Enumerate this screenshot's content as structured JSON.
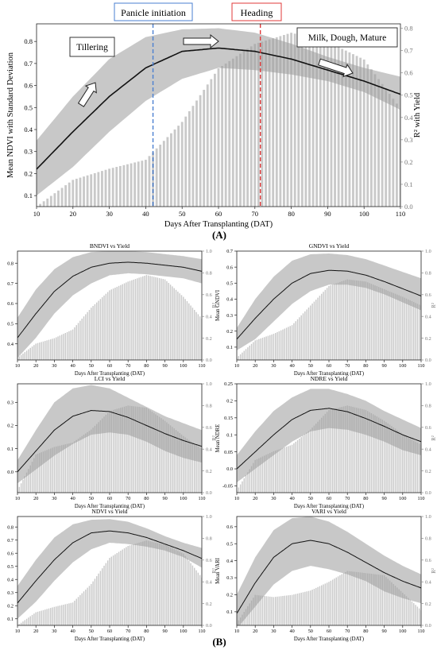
{
  "figure": {
    "panel_a_label": "(A)",
    "panel_b_label": "(B)"
  },
  "chart_data": [
    {
      "id": "A",
      "type": "bar+line",
      "title": "",
      "xlabel": "Days After Transplanting (DAT)",
      "ylabel": "Mean NDVI with Standard Deviation",
      "y2label": "R² with Yield",
      "xlim": [
        10,
        110
      ],
      "ylim": [
        0.05,
        0.88
      ],
      "y2lim": [
        0,
        0.82
      ],
      "xticks": [
        10,
        20,
        30,
        40,
        50,
        60,
        70,
        80,
        90,
        100,
        110
      ],
      "yticks": [
        0.1,
        0.2,
        0.3,
        0.4,
        0.5,
        0.6,
        0.7,
        0.8
      ],
      "y2ticks": [
        0.0,
        0.1,
        0.2,
        0.3,
        0.4,
        0.5,
        0.6,
        0.7,
        0.8
      ],
      "mean_curve": {
        "x": [
          10,
          20,
          30,
          40,
          50,
          60,
          70,
          80,
          90,
          100,
          110
        ],
        "y": [
          0.22,
          0.39,
          0.55,
          0.68,
          0.755,
          0.77,
          0.755,
          0.72,
          0.67,
          0.62,
          0.56
        ]
      },
      "sd_upper": [
        0.35,
        0.55,
        0.72,
        0.82,
        0.855,
        0.86,
        0.84,
        0.79,
        0.73,
        0.68,
        0.64
      ],
      "sd_lower": [
        0.1,
        0.23,
        0.39,
        0.53,
        0.63,
        0.68,
        0.67,
        0.65,
        0.62,
        0.57,
        0.49
      ],
      "r2_bars": {
        "x": [
          10,
          20,
          30,
          40,
          50,
          60,
          70,
          80,
          90,
          100,
          110
        ],
        "y": [
          0.0,
          0.12,
          0.17,
          0.21,
          0.38,
          0.62,
          0.73,
          0.78,
          0.74,
          0.66,
          0.44
        ]
      },
      "vlines": [
        {
          "x": 42,
          "label": "Panicle initiation",
          "color": "#4a7fd1"
        },
        {
          "x": 71.5,
          "label": "Heading",
          "color": "#e03a3a"
        }
      ],
      "annotations": [
        "Tillering",
        "Milk, Dough, Mature"
      ]
    },
    {
      "id": "B1",
      "type": "bar+line",
      "title": "BNDVI vs Yield",
      "xlabel": "Days After Transplanting (DAT)",
      "ylabel": "Mean BNDVI",
      "y2label": "R²",
      "xlim": [
        10,
        110
      ],
      "ylim": [
        0.32,
        0.86
      ],
      "y2lim": [
        0,
        1.0
      ],
      "xticks": [
        10,
        20,
        30,
        40,
        50,
        60,
        70,
        80,
        90,
        100,
        110
      ],
      "yticks": [
        0.4,
        0.5,
        0.6,
        0.7,
        0.8
      ],
      "y2ticks": [
        0.0,
        0.2,
        0.4,
        0.6,
        0.8,
        1.0
      ],
      "mean_curve": {
        "x": [
          10,
          20,
          30,
          40,
          50,
          60,
          70,
          80,
          90,
          100,
          110
        ],
        "y": [
          0.43,
          0.55,
          0.66,
          0.735,
          0.78,
          0.8,
          0.805,
          0.8,
          0.79,
          0.78,
          0.76
        ]
      },
      "sd_upper": [
        0.53,
        0.67,
        0.77,
        0.83,
        0.855,
        0.86,
        0.86,
        0.855,
        0.845,
        0.835,
        0.82
      ],
      "sd_lower": [
        0.33,
        0.43,
        0.55,
        0.64,
        0.7,
        0.74,
        0.75,
        0.745,
        0.735,
        0.725,
        0.7
      ],
      "r2_bars": {
        "x": [
          10,
          20,
          30,
          40,
          50,
          60,
          70,
          80,
          90,
          100,
          110
        ],
        "y": [
          0.02,
          0.15,
          0.2,
          0.28,
          0.48,
          0.64,
          0.72,
          0.78,
          0.74,
          0.58,
          0.38
        ]
      }
    },
    {
      "id": "B2",
      "type": "bar+line",
      "title": "GNDVI vs Yield",
      "xlabel": "Days After Transplanting (DAT)",
      "ylabel": "Mean GNDVI",
      "y2label": "R²",
      "xlim": [
        10,
        110
      ],
      "ylim": [
        0.02,
        0.7
      ],
      "y2lim": [
        0,
        1.0
      ],
      "xticks": [
        10,
        20,
        30,
        40,
        50,
        60,
        70,
        80,
        90,
        100,
        110
      ],
      "yticks": [
        0.1,
        0.2,
        0.3,
        0.4,
        0.5,
        0.6,
        0.7
      ],
      "y2ticks": [
        0.0,
        0.2,
        0.4,
        0.6,
        0.8,
        1.0
      ],
      "mean_curve": {
        "x": [
          10,
          20,
          30,
          40,
          50,
          60,
          70,
          80,
          90,
          100,
          110
        ],
        "y": [
          0.15,
          0.28,
          0.4,
          0.5,
          0.56,
          0.58,
          0.575,
          0.55,
          0.51,
          0.465,
          0.42
        ]
      },
      "sd_upper": [
        0.22,
        0.4,
        0.54,
        0.64,
        0.68,
        0.685,
        0.675,
        0.65,
        0.61,
        0.57,
        0.53
      ],
      "sd_lower": [
        0.08,
        0.15,
        0.26,
        0.37,
        0.45,
        0.49,
        0.49,
        0.47,
        0.43,
        0.38,
        0.33
      ],
      "r2_bars": {
        "x": [
          10,
          20,
          30,
          40,
          50,
          60,
          70,
          80,
          90,
          100,
          110
        ],
        "y": [
          0.02,
          0.18,
          0.24,
          0.32,
          0.5,
          0.68,
          0.74,
          0.72,
          0.65,
          0.58,
          0.5
        ]
      }
    },
    {
      "id": "B3",
      "type": "bar+line",
      "title": "LCI vs Yield",
      "xlabel": "Days After Transplanting (DAT)",
      "ylabel": "Mean LCI",
      "y2label": "R²",
      "xlim": [
        10,
        110
      ],
      "ylim": [
        -0.09,
        0.38
      ],
      "y2lim": [
        0,
        1.0
      ],
      "xticks": [
        10,
        20,
        30,
        40,
        50,
        60,
        70,
        80,
        90,
        100,
        110
      ],
      "yticks": [
        0.0,
        0.1,
        0.2,
        0.3
      ],
      "y2ticks": [
        0.0,
        0.2,
        0.4,
        0.6,
        0.8,
        1.0
      ],
      "mean_curve": {
        "x": [
          10,
          20,
          30,
          40,
          50,
          60,
          70,
          80,
          90,
          100,
          110
        ],
        "y": [
          0.0,
          0.09,
          0.18,
          0.24,
          0.265,
          0.26,
          0.235,
          0.2,
          0.165,
          0.135,
          0.11
        ]
      },
      "sd_upper": [
        0.05,
        0.18,
        0.3,
        0.36,
        0.375,
        0.36,
        0.32,
        0.28,
        0.24,
        0.21,
        0.18
      ],
      "sd_lower": [
        -0.05,
        0.01,
        0.07,
        0.12,
        0.16,
        0.17,
        0.16,
        0.13,
        0.09,
        0.06,
        0.04
      ],
      "r2_bars": {
        "x": [
          10,
          20,
          30,
          40,
          50,
          60,
          70,
          80,
          90,
          100,
          110
        ],
        "y": [
          0.02,
          0.35,
          0.42,
          0.46,
          0.58,
          0.75,
          0.8,
          0.78,
          0.66,
          0.52,
          0.4
        ]
      }
    },
    {
      "id": "B4",
      "type": "bar+line",
      "title": "NDRE vs Yield",
      "xlabel": "Days After Transplanting (DAT)",
      "ylabel": "Mean NDRE",
      "y2label": "R²",
      "xlim": [
        10,
        110
      ],
      "ylim": [
        -0.07,
        0.25
      ],
      "y2lim": [
        0,
        1.0
      ],
      "xticks": [
        10,
        20,
        30,
        40,
        50,
        60,
        70,
        80,
        90,
        100,
        110
      ],
      "yticks": [
        -0.05,
        0.0,
        0.05,
        0.1,
        0.15,
        0.2,
        0.25
      ],
      "y2ticks": [
        0.0,
        0.2,
        0.4,
        0.6,
        0.8,
        1.0
      ],
      "mean_curve": {
        "x": [
          10,
          20,
          30,
          40,
          50,
          60,
          70,
          80,
          90,
          100,
          110
        ],
        "y": [
          0.0,
          0.05,
          0.1,
          0.145,
          0.172,
          0.178,
          0.168,
          0.148,
          0.125,
          0.1,
          0.08
        ]
      },
      "sd_upper": [
        0.04,
        0.11,
        0.17,
        0.21,
        0.235,
        0.235,
        0.22,
        0.2,
        0.17,
        0.145,
        0.12
      ],
      "sd_lower": [
        -0.04,
        0.0,
        0.04,
        0.08,
        0.11,
        0.12,
        0.115,
        0.1,
        0.08,
        0.055,
        0.04
      ],
      "r2_bars": {
        "x": [
          10,
          20,
          30,
          40,
          50,
          60,
          70,
          80,
          90,
          100,
          110
        ],
        "y": [
          0.02,
          0.3,
          0.38,
          0.44,
          0.58,
          0.76,
          0.8,
          0.76,
          0.66,
          0.54,
          0.44
        ]
      }
    },
    {
      "id": "B5",
      "type": "bar+line",
      "title": "NDVI vs Yield",
      "xlabel": "Days After Transplanting (DAT)",
      "ylabel": "Mean NDVI",
      "y2label": "R²",
      "xlim": [
        10,
        110
      ],
      "ylim": [
        0.05,
        0.88
      ],
      "y2lim": [
        0,
        1.0
      ],
      "xticks": [
        10,
        20,
        30,
        40,
        50,
        60,
        70,
        80,
        90,
        100,
        110
      ],
      "yticks": [
        0.1,
        0.2,
        0.3,
        0.4,
        0.5,
        0.6,
        0.7,
        0.8
      ],
      "y2ticks": [
        0.0,
        0.2,
        0.4,
        0.6,
        0.8,
        1.0
      ],
      "mean_curve": {
        "x": [
          10,
          20,
          30,
          40,
          50,
          60,
          70,
          80,
          90,
          100,
          110
        ],
        "y": [
          0.22,
          0.39,
          0.55,
          0.68,
          0.755,
          0.77,
          0.755,
          0.72,
          0.67,
          0.62,
          0.56
        ]
      },
      "sd_upper": [
        0.35,
        0.55,
        0.72,
        0.82,
        0.855,
        0.86,
        0.84,
        0.79,
        0.73,
        0.68,
        0.64
      ],
      "sd_lower": [
        0.1,
        0.23,
        0.39,
        0.53,
        0.63,
        0.68,
        0.67,
        0.65,
        0.62,
        0.57,
        0.49
      ],
      "r2_bars": {
        "x": [
          10,
          20,
          30,
          40,
          50,
          60,
          70,
          80,
          90,
          100,
          110
        ],
        "y": [
          0.0,
          0.12,
          0.17,
          0.21,
          0.38,
          0.62,
          0.73,
          0.78,
          0.74,
          0.66,
          0.44
        ]
      }
    },
    {
      "id": "B6",
      "type": "bar+line",
      "title": "VARI vs Yield",
      "xlabel": "Days After Transplanting (DAT)",
      "ylabel": "Mean VARI",
      "y2label": "R²",
      "xlim": [
        10,
        110
      ],
      "ylim": [
        0.02,
        0.66
      ],
      "y2lim": [
        0,
        1.0
      ],
      "xticks": [
        10,
        20,
        30,
        40,
        50,
        60,
        70,
        80,
        90,
        100,
        110
      ],
      "yticks": [
        0.1,
        0.2,
        0.3,
        0.4,
        0.5,
        0.6
      ],
      "y2ticks": [
        0.0,
        0.2,
        0.4,
        0.6,
        0.8,
        1.0
      ],
      "mean_curve": {
        "x": [
          10,
          20,
          30,
          40,
          50,
          60,
          70,
          80,
          90,
          100,
          110
        ],
        "y": [
          0.09,
          0.27,
          0.42,
          0.5,
          0.52,
          0.5,
          0.45,
          0.39,
          0.33,
          0.28,
          0.24
        ]
      },
      "sd_upper": [
        0.2,
        0.42,
        0.58,
        0.65,
        0.66,
        0.63,
        0.57,
        0.5,
        0.43,
        0.37,
        0.32
      ],
      "sd_lower": [
        0.0,
        0.13,
        0.26,
        0.34,
        0.37,
        0.35,
        0.32,
        0.28,
        0.22,
        0.18,
        0.15
      ],
      "r2_bars": {
        "x": [
          10,
          20,
          30,
          40,
          50,
          60,
          70,
          80,
          90,
          100,
          110
        ],
        "y": [
          0.02,
          0.28,
          0.26,
          0.28,
          0.32,
          0.4,
          0.5,
          0.48,
          0.46,
          0.3,
          0.14
        ]
      }
    }
  ]
}
